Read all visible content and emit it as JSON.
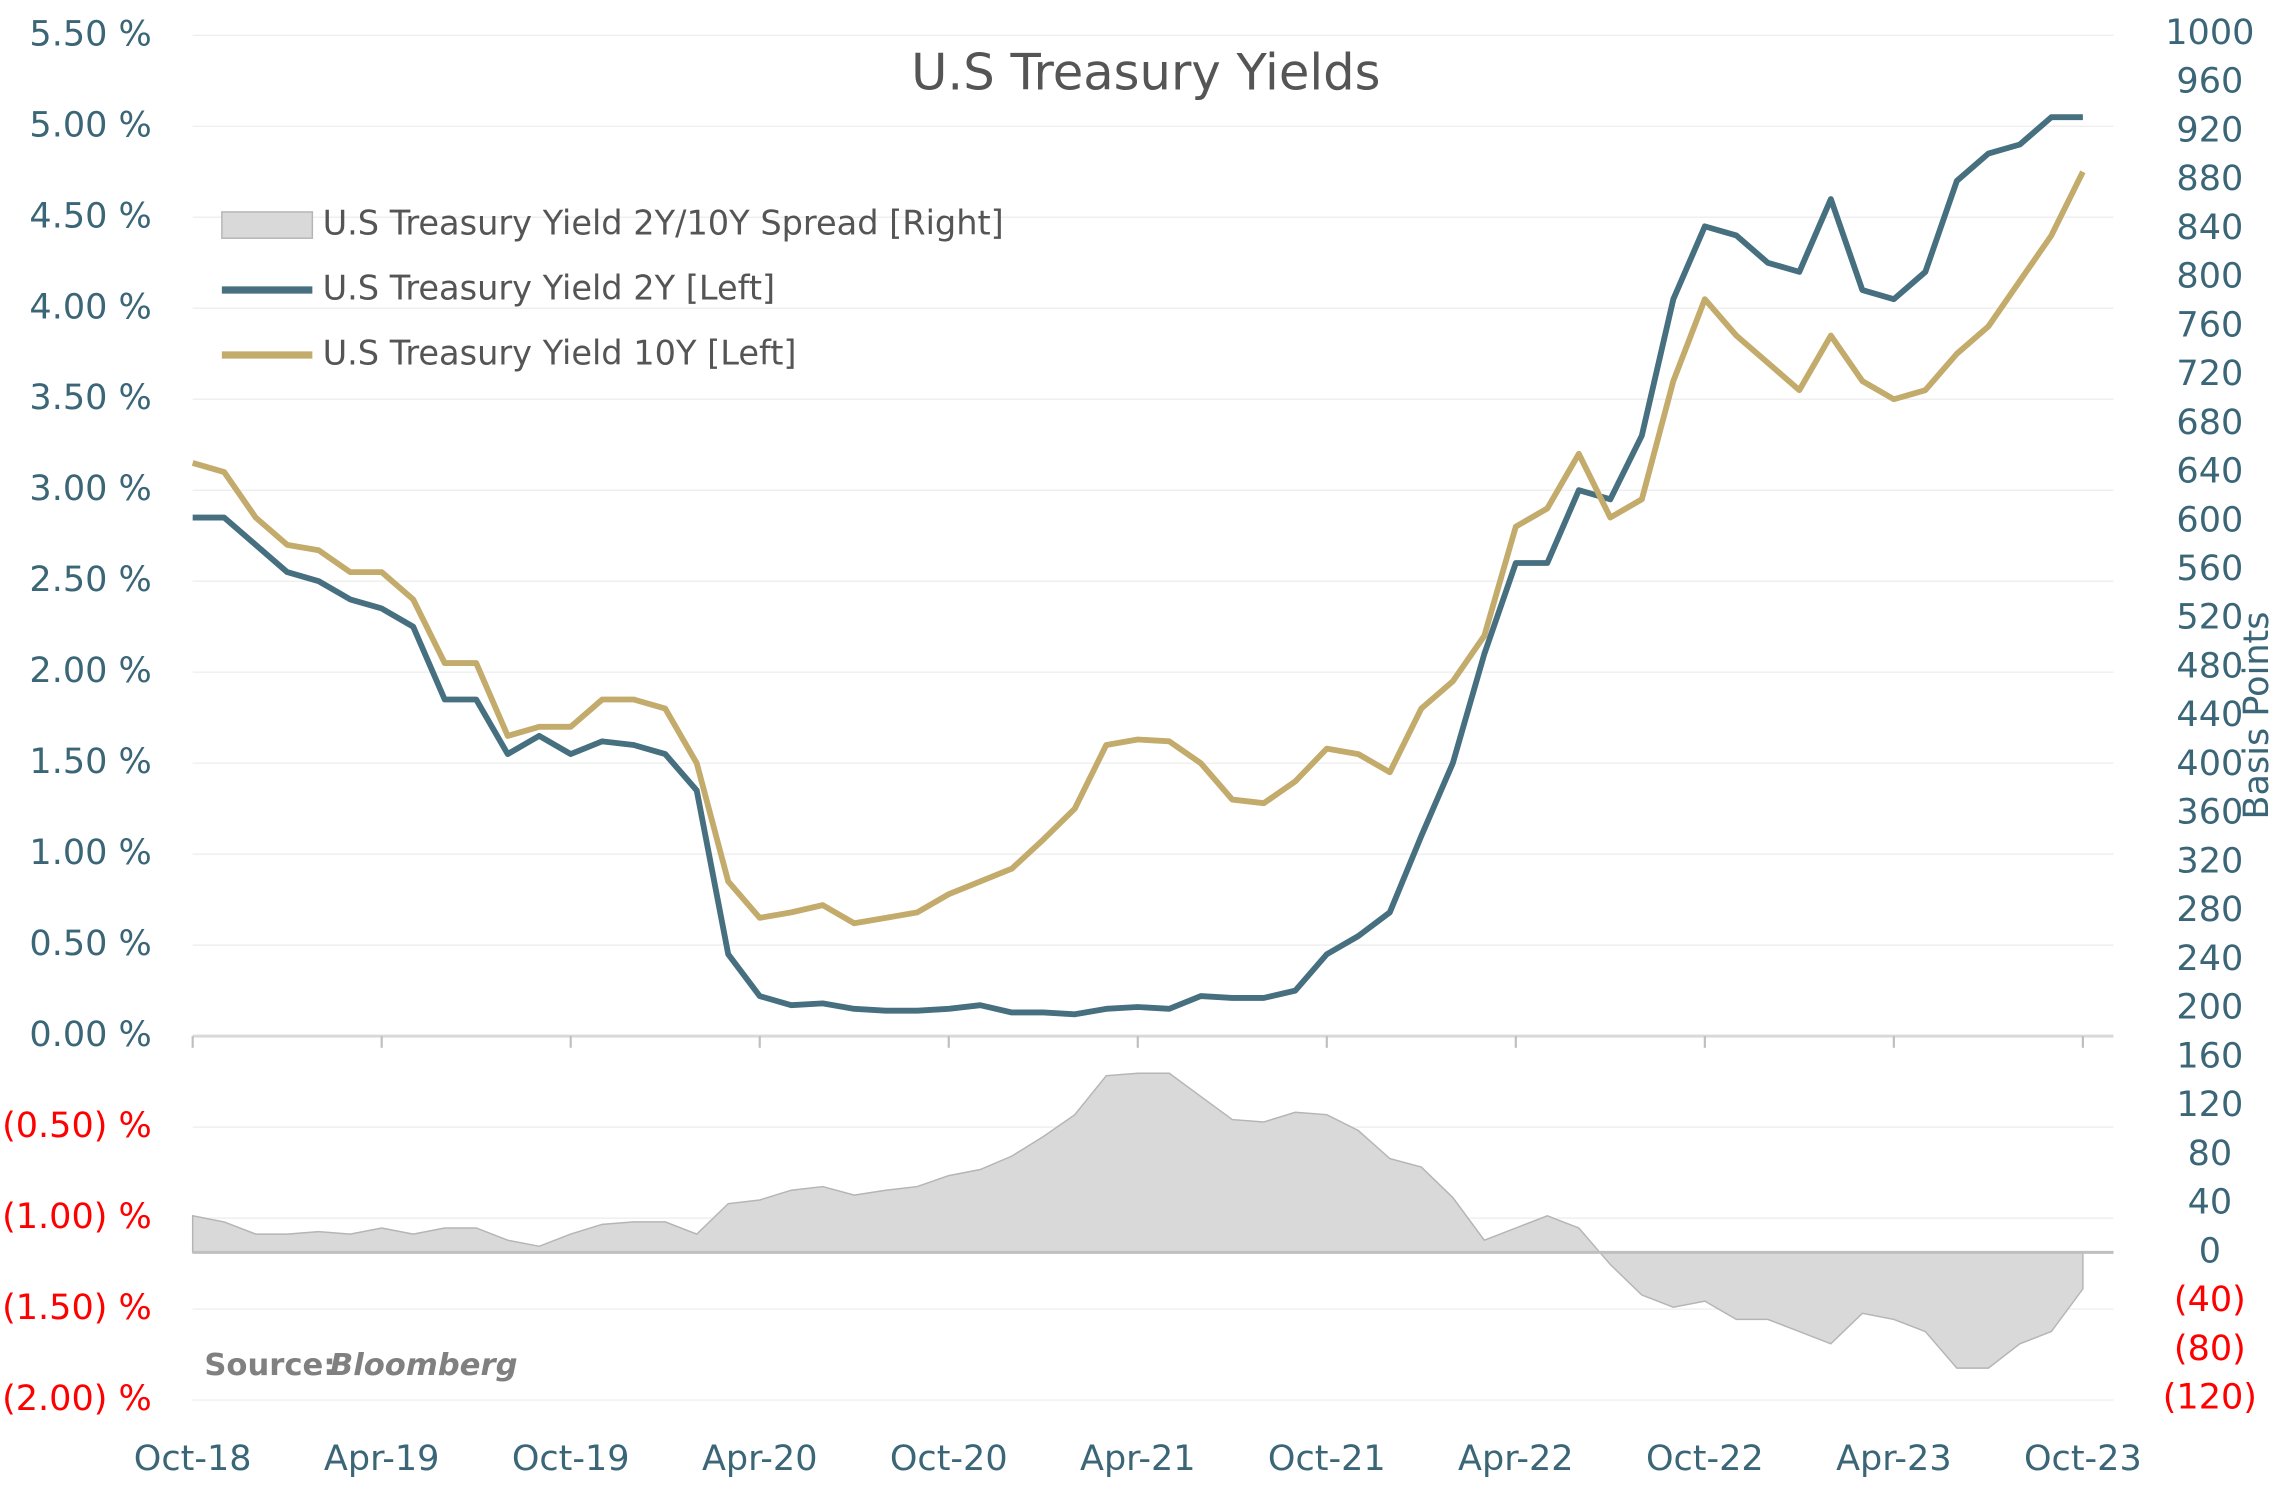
{
  "chart_data": {
    "type": "line",
    "title": "U.S Treasury Yields",
    "y2_label": "Basis Points",
    "source_label": "Source:",
    "source": "Bloomberg",
    "x": [
      "Oct-18",
      "Nov-18",
      "Dec-18",
      "Jan-19",
      "Feb-19",
      "Mar-19",
      "Apr-19",
      "May-19",
      "Jun-19",
      "Jul-19",
      "Aug-19",
      "Sep-19",
      "Oct-19",
      "Nov-19",
      "Dec-19",
      "Jan-20",
      "Feb-20",
      "Mar-20",
      "Apr-20",
      "May-20",
      "Jun-20",
      "Jul-20",
      "Aug-20",
      "Sep-20",
      "Oct-20",
      "Nov-20",
      "Dec-20",
      "Jan-21",
      "Feb-21",
      "Mar-21",
      "Apr-21",
      "May-21",
      "Jun-21",
      "Jul-21",
      "Aug-21",
      "Sep-21",
      "Oct-21",
      "Nov-21",
      "Dec-21",
      "Jan-22",
      "Feb-22",
      "Mar-22",
      "Apr-22",
      "May-22",
      "Jun-22",
      "Jul-22",
      "Aug-22",
      "Sep-22",
      "Oct-22",
      "Nov-22",
      "Dec-22",
      "Jan-23",
      "Feb-23",
      "Mar-23",
      "Apr-23",
      "May-23",
      "Jun-23",
      "Jul-23",
      "Aug-23",
      "Sep-23",
      "Oct-23"
    ],
    "xticks": [
      "Oct-18",
      "Apr-19",
      "Oct-19",
      "Apr-20",
      "Oct-20",
      "Apr-21",
      "Oct-21",
      "Apr-22",
      "Oct-22",
      "Apr-23",
      "Oct-23"
    ],
    "series": [
      {
        "name": "U.S Treasury Yield 2Y/10Y Spread [Right]",
        "kind": "area",
        "axis": "y2",
        "color": "#d9d9d9",
        "edge_color": "#b5b5b5",
        "values": [
          30,
          25,
          15,
          15,
          17,
          15,
          20,
          15,
          20,
          20,
          10,
          5,
          15,
          23,
          25,
          25,
          15,
          40,
          43,
          51,
          54,
          47,
          51,
          54,
          63,
          68,
          79,
          95,
          113,
          145,
          147,
          147,
          128,
          109,
          107,
          115,
          113,
          100,
          77,
          70,
          45,
          10,
          20,
          30,
          20,
          -10,
          -35,
          -45,
          -40,
          -55,
          -55,
          -65,
          -75,
          -50,
          -55,
          -65,
          -95,
          -95,
          -75,
          -65,
          -30
        ]
      },
      {
        "name": "U.S Treasury Yield 2Y [Left]",
        "kind": "line",
        "color": "#466f7f",
        "values": [
          2.85,
          2.85,
          2.7,
          2.55,
          2.5,
          2.4,
          2.35,
          2.25,
          1.85,
          1.85,
          1.55,
          1.65,
          1.55,
          1.62,
          1.6,
          1.55,
          1.35,
          0.45,
          0.22,
          0.17,
          0.18,
          0.15,
          0.14,
          0.14,
          0.15,
          0.17,
          0.13,
          0.13,
          0.12,
          0.15,
          0.16,
          0.15,
          0.22,
          0.21,
          0.21,
          0.25,
          0.45,
          0.55,
          0.68,
          1.1,
          1.5,
          2.1,
          2.6,
          2.6,
          3.0,
          2.95,
          3.3,
          4.05,
          4.45,
          4.4,
          4.25,
          4.2,
          4.6,
          4.1,
          4.05,
          4.2,
          4.7,
          4.85,
          4.9,
          5.05,
          5.05
        ]
      },
      {
        "name": "U.S Treasury Yield 10Y [Left]",
        "kind": "line",
        "color": "#c3ab6c",
        "values": [
          3.15,
          3.1,
          2.85,
          2.7,
          2.67,
          2.55,
          2.55,
          2.4,
          2.05,
          2.05,
          1.65,
          1.7,
          1.7,
          1.85,
          1.85,
          1.8,
          1.5,
          0.85,
          0.65,
          0.68,
          0.72,
          0.62,
          0.65,
          0.68,
          0.78,
          0.85,
          0.92,
          1.08,
          1.25,
          1.6,
          1.63,
          1.62,
          1.5,
          1.3,
          1.28,
          1.4,
          1.58,
          1.55,
          1.45,
          1.8,
          1.95,
          2.2,
          2.8,
          2.9,
          3.2,
          2.85,
          2.95,
          3.6,
          4.05,
          3.85,
          3.7,
          3.55,
          3.85,
          3.6,
          3.5,
          3.55,
          3.75,
          3.9,
          4.15,
          4.4,
          4.75
        ]
      }
    ],
    "ylim": [
      -2.0,
      5.5
    ],
    "yticks": [
      {
        "value": 5.5,
        "label": "5.50 %"
      },
      {
        "value": 5.0,
        "label": "5.00 %"
      },
      {
        "value": 4.5,
        "label": "4.50 %"
      },
      {
        "value": 4.0,
        "label": "4.00 %"
      },
      {
        "value": 3.5,
        "label": "3.50 %"
      },
      {
        "value": 3.0,
        "label": "3.00 %"
      },
      {
        "value": 2.5,
        "label": "2.50 %"
      },
      {
        "value": 2.0,
        "label": "2.00 %"
      },
      {
        "value": 1.5,
        "label": "1.50 %"
      },
      {
        "value": 1.0,
        "label": "1.00 %"
      },
      {
        "value": 0.5,
        "label": "0.50 %"
      },
      {
        "value": 0,
        "label": "0.00 %"
      },
      {
        "value": -0.5,
        "label": "(0.50) %"
      },
      {
        "value": -1.0,
        "label": "(1.00) %"
      },
      {
        "value": -1.5,
        "label": "(1.50) %"
      },
      {
        "value": -2.0,
        "label": "(2.00) %"
      }
    ],
    "y2lim": [
      -120,
      1000
    ],
    "y2ticks": [
      1000,
      960,
      920,
      880,
      840,
      800,
      760,
      720,
      680,
      640,
      600,
      560,
      520,
      480,
      440,
      400,
      360,
      320,
      280,
      240,
      200,
      160,
      120,
      80,
      40,
      0,
      {
        "value": -40,
        "label": "(40)"
      },
      {
        "value": -80,
        "label": "(80)"
      },
      {
        "value": -120,
        "label": "(120)"
      }
    ],
    "grid": true,
    "tick_color": "#3b6677",
    "negative_color": "#ff0000"
  }
}
